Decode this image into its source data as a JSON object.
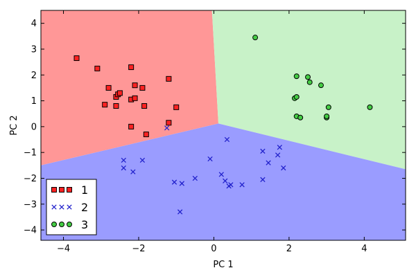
{
  "chart_data": {
    "type": "scatter",
    "title": "",
    "xlabel": "PC 1",
    "ylabel": "PC 2",
    "xlim": [
      -4.6,
      5.1
    ],
    "ylim": [
      -4.4,
      4.5
    ],
    "xticks": [
      -4,
      -2,
      0,
      2,
      4
    ],
    "yticks": [
      -4,
      -3,
      -2,
      -1,
      0,
      1,
      2,
      3,
      4
    ],
    "xtick_labels": [
      "−4",
      "−2",
      "0",
      "2",
      "4"
    ],
    "ytick_labels": [
      "−4",
      "−3",
      "−2",
      "−1",
      "0",
      "1",
      "2",
      "3",
      "4"
    ],
    "grid": false,
    "legend": "lower-left",
    "decision_regions": [
      {
        "class": "1",
        "color": "#ff9797",
        "polygon": [
          [
            -4.6,
            4.5
          ],
          [
            -0.05,
            4.5
          ],
          [
            0.12,
            0.12
          ],
          [
            -4.6,
            -1.5
          ]
        ]
      },
      {
        "class": "3",
        "color": "#c8f2c8",
        "polygon": [
          [
            -0.05,
            4.5
          ],
          [
            5.1,
            4.5
          ],
          [
            5.1,
            -1.65
          ],
          [
            0.12,
            0.12
          ]
        ]
      },
      {
        "class": "2",
        "color": "#9a9cff",
        "polygon": [
          [
            -4.6,
            -1.5
          ],
          [
            0.12,
            0.12
          ],
          [
            5.1,
            -1.65
          ],
          [
            5.1,
            -4.4
          ],
          [
            -4.6,
            -4.4
          ]
        ]
      }
    ],
    "series": [
      {
        "name": "1",
        "marker": "square",
        "color": "#ff2222",
        "points": [
          [
            -3.65,
            2.65
          ],
          [
            -3.1,
            2.25
          ],
          [
            -2.2,
            2.3
          ],
          [
            -2.1,
            1.6
          ],
          [
            -1.2,
            1.85
          ],
          [
            -2.8,
            1.5
          ],
          [
            -2.6,
            1.15
          ],
          [
            -2.55,
            1.25
          ],
          [
            -2.5,
            1.3
          ],
          [
            -2.2,
            1.05
          ],
          [
            -2.1,
            1.1
          ],
          [
            -1.9,
            1.5
          ],
          [
            -2.9,
            0.85
          ],
          [
            -2.6,
            0.8
          ],
          [
            -1.85,
            0.8
          ],
          [
            -1.0,
            0.75
          ],
          [
            -2.2,
            0.0
          ],
          [
            -1.2,
            0.15
          ],
          [
            -1.8,
            -0.3
          ]
        ]
      },
      {
        "name": "2",
        "marker": "x",
        "color": "#2222cc",
        "points": [
          [
            -1.25,
            -0.05
          ],
          [
            0.35,
            -0.5
          ],
          [
            -2.4,
            -1.3
          ],
          [
            -2.4,
            -1.6
          ],
          [
            -2.15,
            -1.75
          ],
          [
            -1.9,
            -1.3
          ],
          [
            -0.1,
            -1.25
          ],
          [
            1.3,
            -0.95
          ],
          [
            1.75,
            -0.8
          ],
          [
            1.45,
            -1.4
          ],
          [
            1.7,
            -1.1
          ],
          [
            1.85,
            -1.6
          ],
          [
            -1.05,
            -2.15
          ],
          [
            -0.85,
            -2.2
          ],
          [
            -0.5,
            -2.0
          ],
          [
            0.2,
            -1.85
          ],
          [
            0.3,
            -2.1
          ],
          [
            0.4,
            -2.3
          ],
          [
            0.45,
            -2.25
          ],
          [
            0.75,
            -2.25
          ],
          [
            1.3,
            -2.05
          ],
          [
            -0.9,
            -3.3
          ]
        ]
      },
      {
        "name": "3",
        "marker": "circle",
        "color": "#44cc44",
        "points": [
          [
            1.1,
            3.45
          ],
          [
            2.2,
            1.95
          ],
          [
            2.5,
            1.92
          ],
          [
            2.55,
            1.72
          ],
          [
            2.85,
            1.6
          ],
          [
            2.15,
            1.1
          ],
          [
            2.2,
            1.15
          ],
          [
            3.05,
            0.75
          ],
          [
            4.15,
            0.75
          ],
          [
            2.2,
            0.4
          ],
          [
            2.3,
            0.35
          ],
          [
            3.0,
            0.35
          ],
          [
            3.0,
            0.4
          ]
        ]
      }
    ]
  }
}
